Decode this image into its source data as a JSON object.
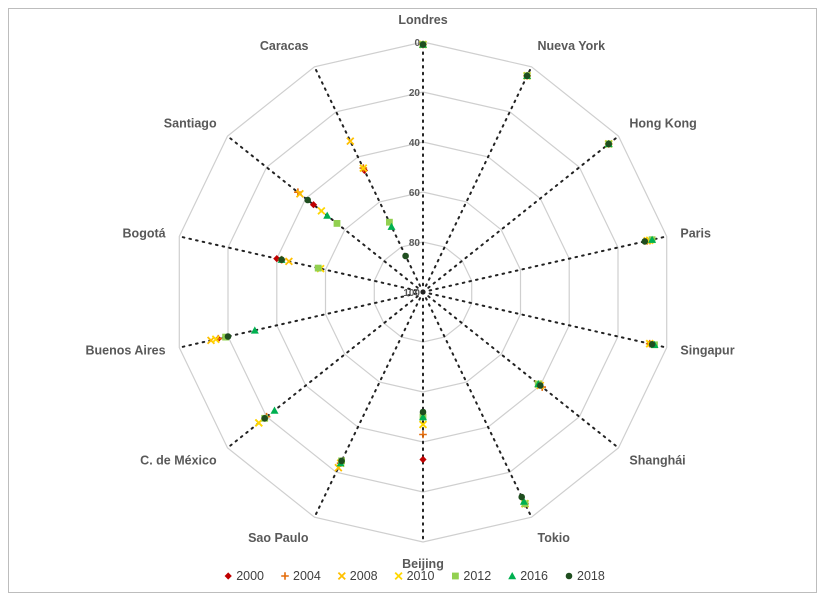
{
  "chart_data": {
    "type": "radar",
    "categories": [
      "Londres",
      "Nueva York",
      "Hong Kong",
      "Paris",
      "Singapur",
      "Shanghái",
      "Tokio",
      "Beijing",
      "Sao Paulo",
      "C. de México",
      "Buenos Aires",
      "Bogotá",
      "Santiago",
      "Caracas"
    ],
    "r_ticks": [
      0,
      20,
      40,
      60,
      80,
      100
    ],
    "rlim": [
      0,
      100
    ],
    "reversed_radius": true,
    "grid": true,
    "legend_position": "bottom",
    "series": [
      {
        "name": "2000",
        "color": "#c00000",
        "marker": "diamond",
        "values": [
          1,
          4,
          5,
          8,
          7,
          41,
          6,
          33,
          24,
          19,
          16,
          40,
          44,
          46
        ]
      },
      {
        "name": "2004",
        "color": "#e46c0a",
        "marker": "plus",
        "values": [
          1,
          4,
          5,
          8,
          7,
          39,
          6,
          43,
          24,
          20,
          16,
          42,
          36,
          45
        ]
      },
      {
        "name": "2008",
        "color": "#ffc000",
        "marker": "x",
        "values": [
          1,
          4,
          5,
          8,
          7,
          40,
          6,
          47,
          22,
          16,
          13,
          45,
          37,
          33
        ]
      },
      {
        "name": "2010",
        "color": "#ffd700",
        "marker": "x",
        "values": [
          1,
          4,
          5,
          7,
          7,
          41,
          6,
          47,
          24,
          16,
          15,
          58,
          48,
          45
        ]
      },
      {
        "name": "2012",
        "color": "#92d050",
        "marker": "square",
        "values": [
          1,
          4,
          5,
          6,
          5,
          41,
          6,
          50,
          25,
          19,
          19,
          57,
          56,
          69
        ]
      },
      {
        "name": "2016",
        "color": "#00b050",
        "marker": "triangle",
        "values": [
          1,
          4,
          5,
          6,
          5,
          41,
          7,
          50,
          24,
          24,
          31,
          42,
          51,
          71
        ]
      },
      {
        "name": "2018",
        "color": "#1f4e1f",
        "marker": "circle",
        "values": [
          1,
          4,
          5,
          9,
          6,
          40,
          9,
          52,
          25,
          19,
          20,
          42,
          41,
          84
        ]
      }
    ]
  }
}
